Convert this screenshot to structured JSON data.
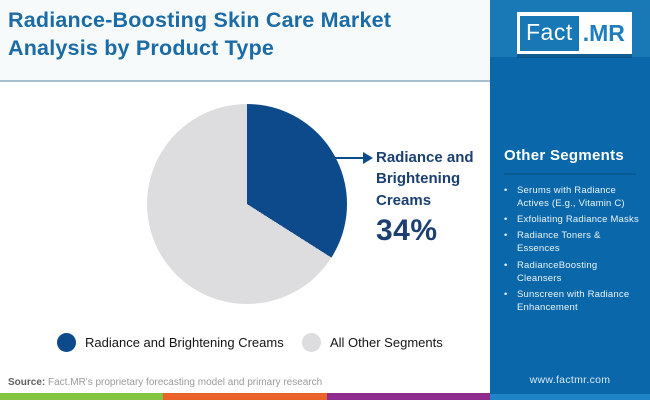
{
  "header": {
    "title": "Radiance-Boosting Skin Care Market Analysis by Product Type"
  },
  "logo": {
    "fact": "Fact",
    "mr": ".MR"
  },
  "chart_data": {
    "type": "pie",
    "title": "Radiance-Boosting Skin Care Market Analysis by Product Type",
    "slices": [
      {
        "label": "Radiance and Brightening Creams",
        "value": 34,
        "color": "#0d4a8c"
      },
      {
        "label": "All Other Segments",
        "value": 66,
        "color": "#dddde0"
      }
    ],
    "callout": {
      "label": "Radiance and Brightening Creams",
      "value_label": "34%"
    },
    "legend_position": "bottom",
    "start_angle_deg": 0,
    "direction": "clockwise"
  },
  "sidebar": {
    "heading": "Other Segments",
    "items": [
      "Serums with Radiance Actives (E.g., Vitamin C)",
      "Exfoliating Radiance Masks",
      "Radiance Toners & Essences",
      "RadianceBoosting Cleansers",
      "Sunscreen with Radiance Enhancement"
    ],
    "website": "www.factmr.com",
    "background_color": "#0a67a9",
    "top_band_color": "#1979b7"
  },
  "footer": {
    "source_label": "Source:",
    "source_text": " Fact.MR's proprietary forecasting model and primary research",
    "strip_colors": [
      "#84c441",
      "#e8622a",
      "#8e2d8e"
    ]
  }
}
